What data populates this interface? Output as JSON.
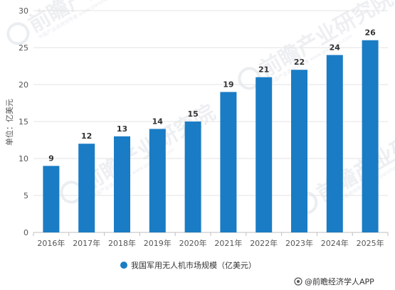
{
  "chart_data": {
    "type": "bar",
    "categories": [
      "2016年",
      "2017年",
      "2018年",
      "2019年",
      "2020年",
      "2021年",
      "2022年",
      "2023年",
      "2024年",
      "2025年"
    ],
    "series": [
      {
        "name": "我国军用无人机市场规模（亿美元）",
        "values": [
          9,
          12,
          13,
          14,
          15,
          19,
          21,
          22,
          24,
          26
        ]
      }
    ],
    "ylabel": "单位：亿美元",
    "ylim": [
      0,
      30
    ],
    "yticks": [
      0,
      5,
      10,
      15,
      20,
      25,
      30
    ],
    "grid": true,
    "legend": "bottom-center",
    "bar_color": "#1a7cc4"
  },
  "credit": "@前瞻经济学人APP",
  "watermark": {
    "text": "前瞻产业研究院",
    "subtext": "中国产业咨询领导者 www.qianzhan.com"
  }
}
